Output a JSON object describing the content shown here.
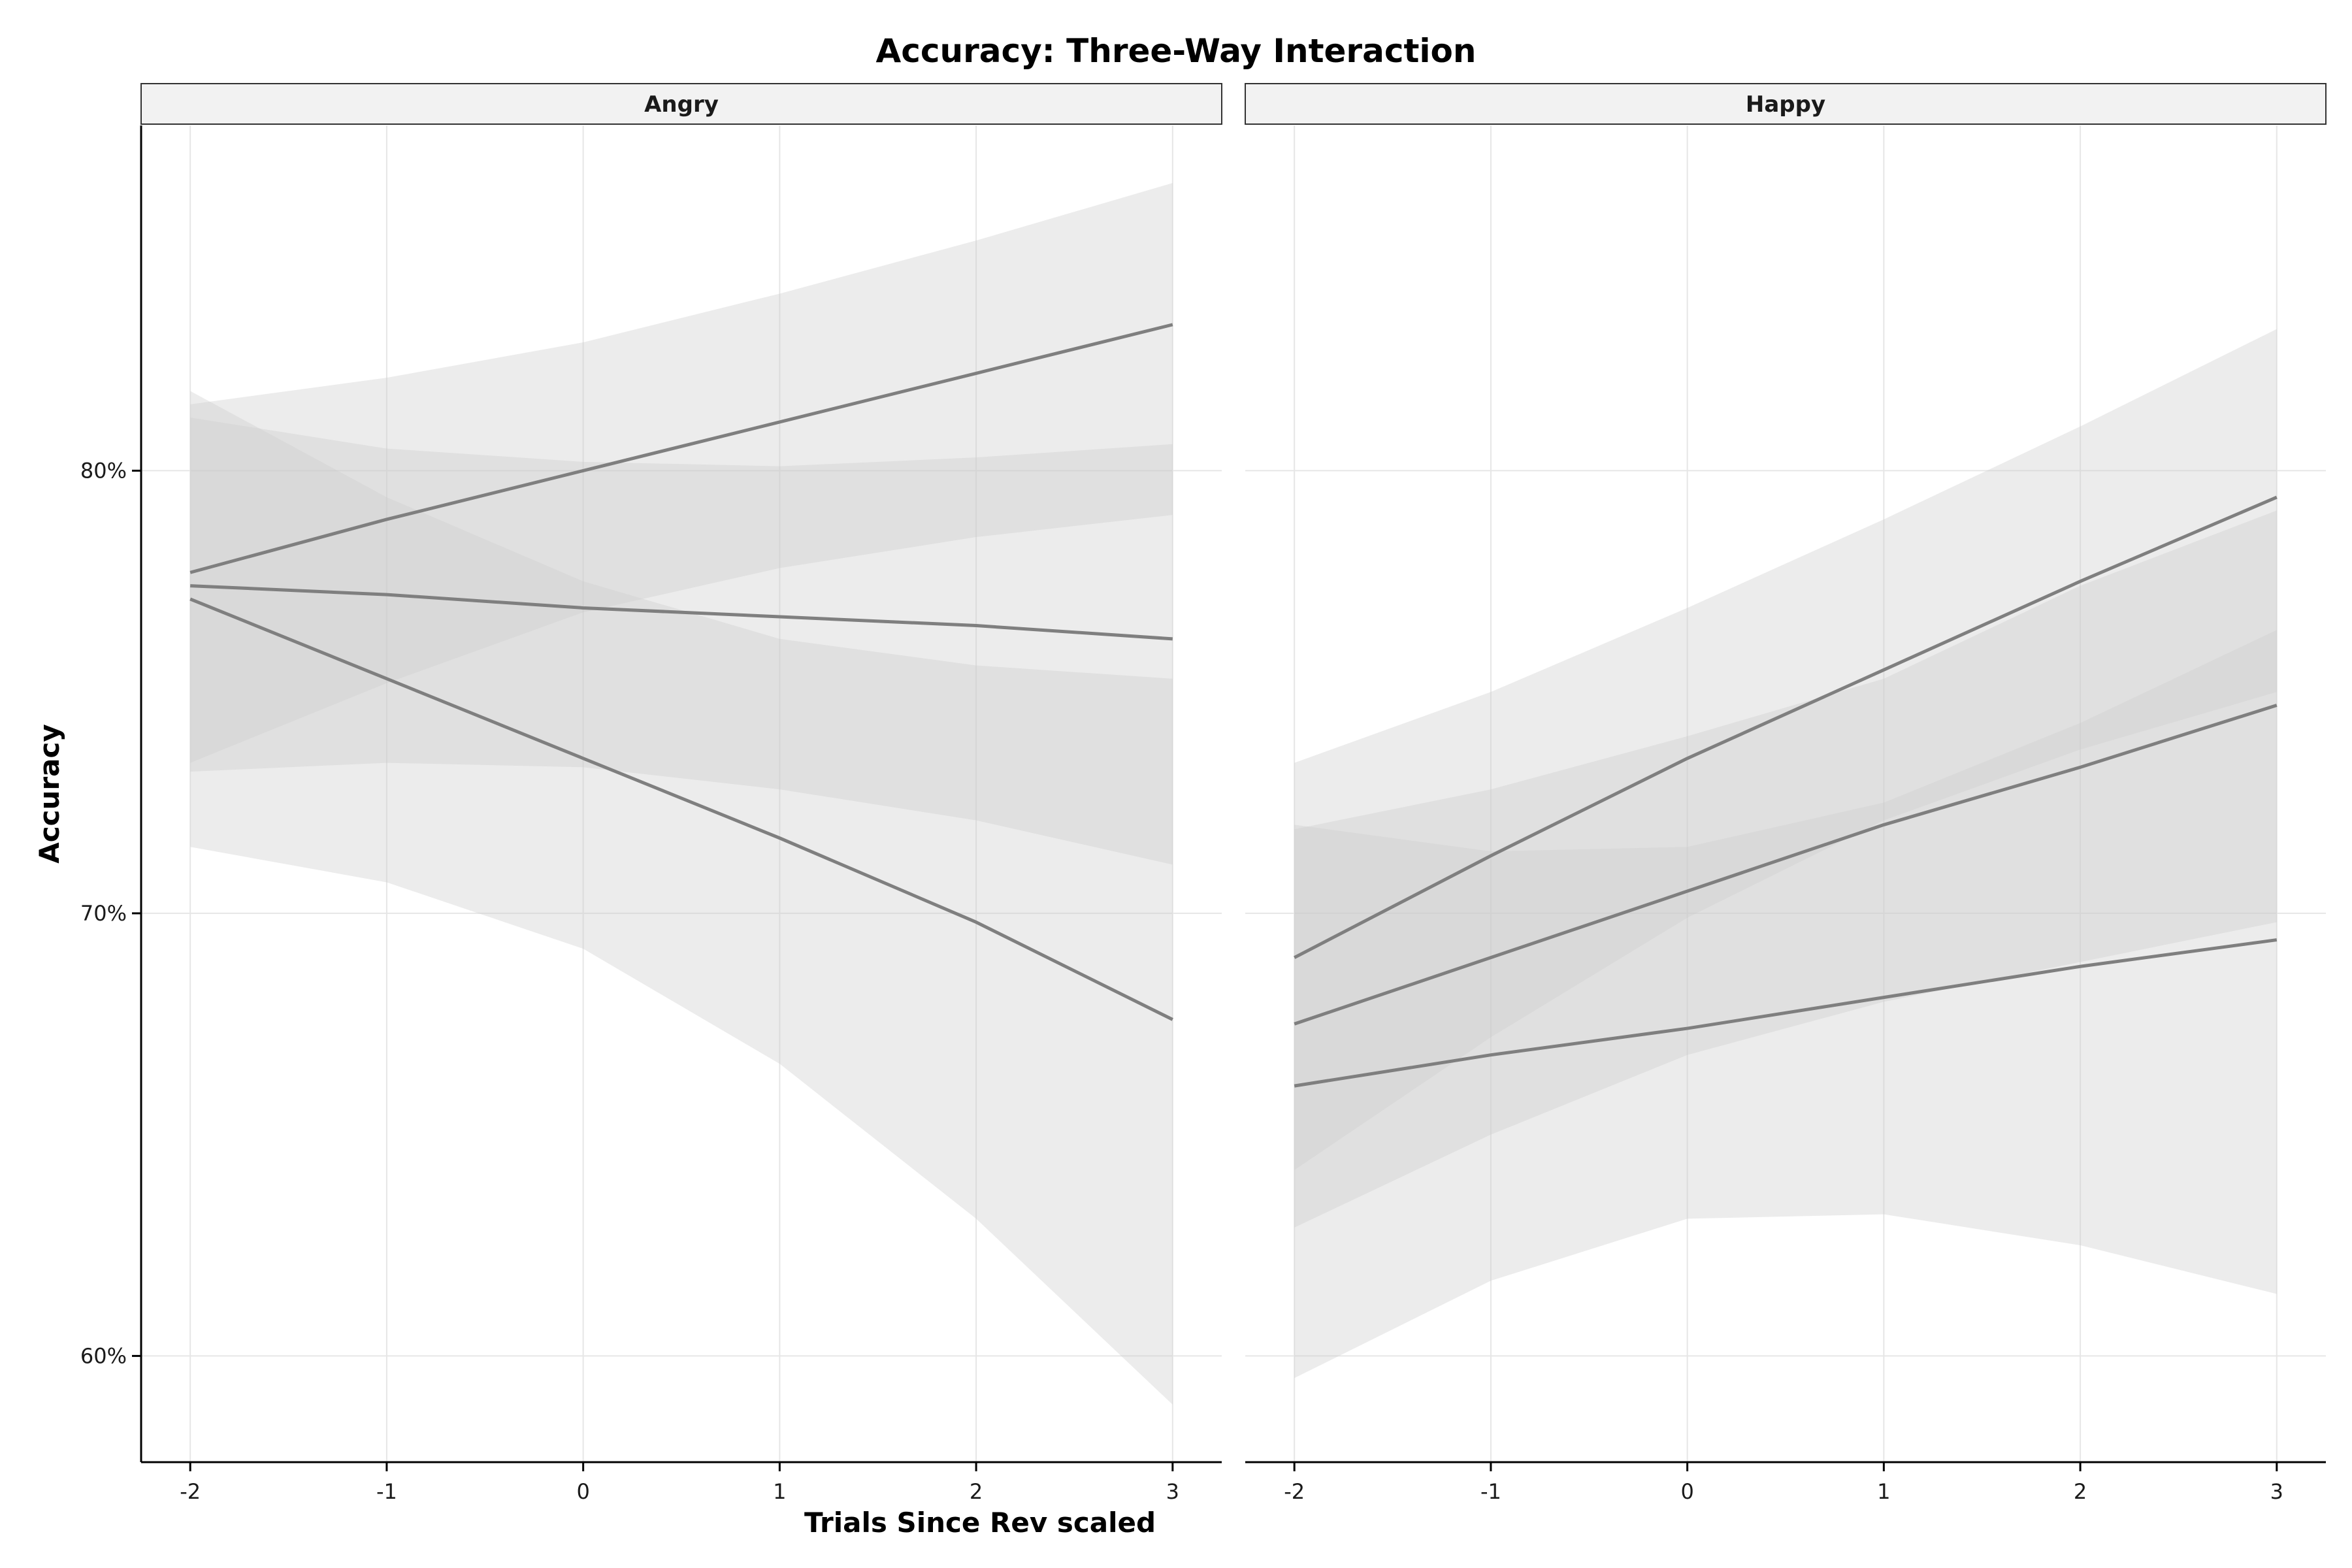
{
  "chart_data": {
    "type": "line",
    "title": "Accuracy: Three-Way Interaction",
    "xlabel": "Trials Since Rev scaled",
    "ylabel": "Accuracy",
    "x": [
      -2,
      -1,
      0,
      1,
      2,
      3
    ],
    "x_ticks": [
      "-2",
      "-1",
      "0",
      "1",
      "2",
      "3"
    ],
    "y_ticks": [
      "60%",
      "70%",
      "80%"
    ],
    "y_tick_values": [
      60,
      70,
      80
    ],
    "ylim": [
      57.6,
      87.8
    ],
    "xlim": [
      -2.25,
      3.25
    ],
    "grid": true,
    "line_color": "#7f7f7f",
    "band_color": "#cccccc",
    "panels": [
      {
        "name": "Angry",
        "series": [
          {
            "values": [
              77.7,
              78.9,
              80.0,
              81.1,
              82.2,
              83.3
            ],
            "lower": [
              73.4,
              75.2,
              76.8,
              77.8,
              78.5,
              79.0
            ],
            "upper": [
              81.5,
              82.1,
              82.9,
              84.0,
              85.2,
              86.5
            ]
          },
          {
            "values": [
              77.4,
              77.2,
              76.9,
              76.7,
              76.5,
              76.2
            ],
            "lower": [
              73.2,
              73.4,
              73.3,
              72.8,
              72.1,
              71.1
            ],
            "upper": [
              81.2,
              80.5,
              80.2,
              80.1,
              80.3,
              80.6
            ]
          },
          {
            "values": [
              77.1,
              75.3,
              73.5,
              71.7,
              69.8,
              67.6
            ],
            "lower": [
              71.5,
              70.7,
              69.2,
              66.6,
              63.1,
              58.9
            ],
            "upper": [
              81.8,
              79.4,
              77.5,
              76.2,
              75.6,
              75.3
            ]
          }
        ]
      },
      {
        "name": "Happy",
        "series": [
          {
            "values": [
              69.0,
              71.3,
              73.5,
              75.5,
              77.5,
              79.4
            ],
            "lower": [
              64.2,
              67.2,
              69.9,
              72.1,
              73.7,
              75.0
            ],
            "upper": [
              73.4,
              75.0,
              76.9,
              78.9,
              81.0,
              83.2
            ]
          },
          {
            "values": [
              67.5,
              69.0,
              70.5,
              72.0,
              73.3,
              74.7
            ],
            "lower": [
              62.9,
              65.0,
              66.8,
              68.0,
              68.9,
              69.8
            ],
            "upper": [
              71.9,
              72.8,
              74.0,
              75.3,
              77.4,
              79.1
            ]
          },
          {
            "values": [
              66.1,
              66.8,
              67.4,
              68.1,
              68.8,
              69.4
            ],
            "lower": [
              59.5,
              61.7,
              63.1,
              63.2,
              62.5,
              61.4
            ],
            "upper": [
              72.0,
              71.4,
              71.5,
              72.5,
              74.3,
              76.4
            ]
          }
        ]
      }
    ]
  }
}
